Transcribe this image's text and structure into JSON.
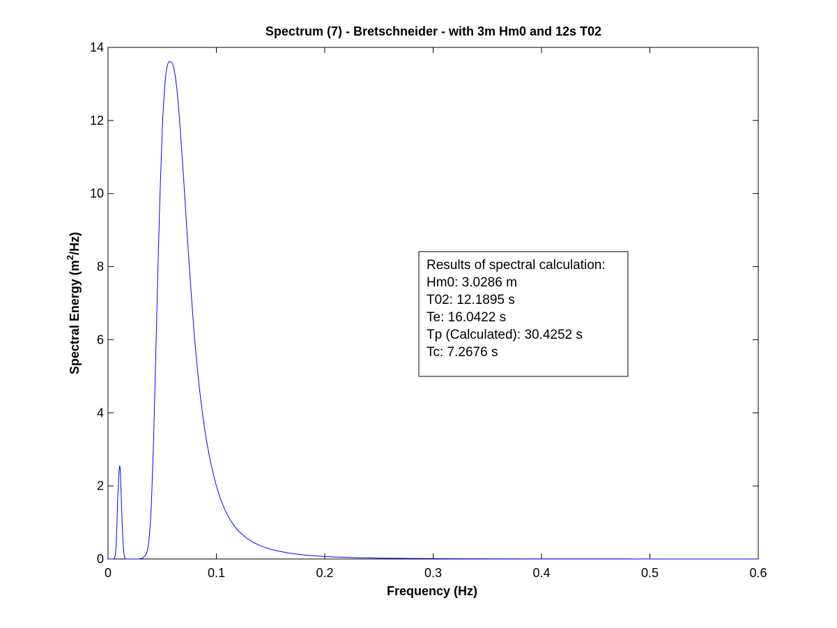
{
  "chart_data": {
    "type": "line",
    "title": "Spectrum (7) - Bretschneider -  with 3m Hm0 and 12s T02",
    "xlabel": "Frequency (Hz)",
    "ylabel_prefix": "Spectral Energy (m",
    "ylabel_sup": "2",
    "ylabel_suffix": "/Hz)",
    "xlim": [
      0,
      0.6
    ],
    "ylim": [
      0,
      14
    ],
    "xticks": [
      0,
      0.1,
      0.2,
      0.3,
      0.4,
      0.5,
      0.6
    ],
    "xtick_labels": [
      "0",
      "0.1",
      "0.2",
      "0.3",
      "0.4",
      "0.5",
      "0.6"
    ],
    "yticks": [
      0,
      2,
      4,
      6,
      8,
      10,
      12,
      14
    ],
    "ytick_labels": [
      "0",
      "2",
      "4",
      "6",
      "8",
      "10",
      "12",
      "14"
    ],
    "grid": false,
    "line_color": "#0000ff",
    "series": [
      {
        "x": [
          0,
          0.0055,
          0.0075,
          0.009,
          0.0105,
          0.0115,
          0.013,
          0.0145,
          0.016,
          0.018,
          0.025,
          0.028,
          0.03,
          0.033,
          0.036,
          0.038,
          0.04,
          0.042,
          0.044,
          0.046,
          0.048,
          0.05,
          0.052,
          0.054,
          0.056,
          0.058,
          0.0595,
          0.061,
          0.063,
          0.065,
          0.067,
          0.07,
          0.073,
          0.076,
          0.08,
          0.085,
          0.09,
          0.095,
          0.1,
          0.105,
          0.11,
          0.115,
          0.12,
          0.13,
          0.14,
          0.15,
          0.16,
          0.17,
          0.18,
          0.2,
          0.22,
          0.25,
          0.3,
          0.35,
          0.4,
          0.5,
          0.6
        ],
        "y": [
          0,
          0,
          0.4,
          1.7,
          2.5,
          2.3,
          1.0,
          0.2,
          0,
          0,
          0,
          0,
          0.01,
          0.05,
          0.2,
          0.6,
          1.5,
          3.2,
          5.5,
          7.9,
          10.0,
          11.7,
          12.8,
          13.4,
          13.6,
          13.6,
          13.55,
          13.4,
          13.0,
          12.4,
          11.6,
          10.3,
          8.9,
          7.6,
          6.0,
          4.5,
          3.4,
          2.6,
          2.0,
          1.55,
          1.22,
          0.97,
          0.78,
          0.53,
          0.37,
          0.27,
          0.2,
          0.15,
          0.115,
          0.07,
          0.045,
          0.025,
          0.011,
          0.005,
          0.003,
          0.001,
          0.0005
        ]
      }
    ]
  },
  "annotation": {
    "lines": [
      "Results of spectral calculation:",
      "Hm0: 3.0286 m",
      "T02: 12.1895 s",
      "Te: 16.0422 s",
      "Tp (Calculated): 30.4252 s",
      "Tc: 7.2676 s"
    ]
  }
}
